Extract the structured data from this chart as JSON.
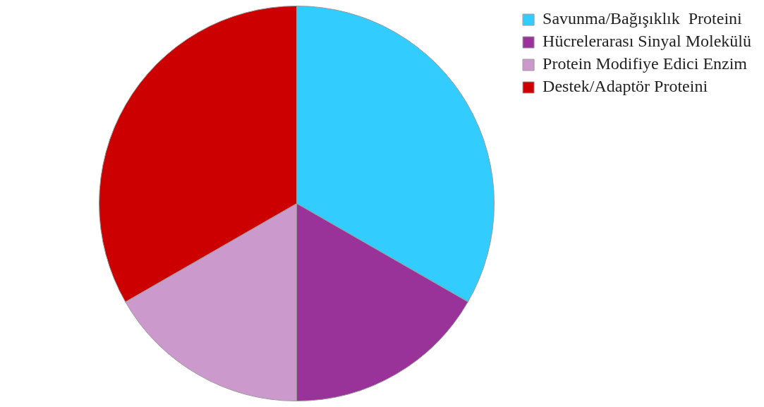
{
  "chart_data": {
    "type": "pie",
    "categories": [
      "Savunma/Bağışıklık  Proteini",
      "Hücrelerarası Sinyal Molekülü",
      "Protein Modifiye Edici Enzim",
      "Destek/Adaptör Proteini"
    ],
    "values": [
      33.3,
      16.7,
      16.7,
      33.3
    ],
    "colors": [
      "#33ccff",
      "#993399",
      "#cc99cc",
      "#cc0000"
    ],
    "legend": "top right"
  }
}
